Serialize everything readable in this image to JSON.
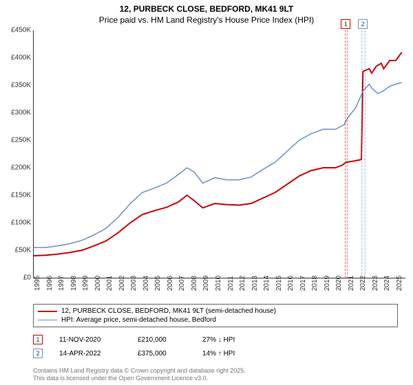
{
  "title_line1": "12, PURBECK CLOSE, BEDFORD, MK41 9LT",
  "title_line2": "Price paid vs. HM Land Registry's House Price Index (HPI)",
  "chart": {
    "type": "line",
    "background_color": "#ffffff",
    "axis_color": "#333333",
    "x_range": [
      1995,
      2025.8
    ],
    "y_range": [
      0,
      450000
    ],
    "y_ticks": [
      0,
      50000,
      100000,
      150000,
      200000,
      250000,
      300000,
      350000,
      400000,
      450000
    ],
    "y_tick_labels": [
      "£0",
      "£50K",
      "£100K",
      "£150K",
      "£200K",
      "£250K",
      "£300K",
      "£350K",
      "£400K",
      "£450K"
    ],
    "x_ticks": [
      1995,
      1996,
      1997,
      1998,
      1999,
      2000,
      2001,
      2002,
      2003,
      2004,
      2005,
      2006,
      2007,
      2008,
      2009,
      2010,
      2011,
      2012,
      2013,
      2014,
      2015,
      2016,
      2017,
      2018,
      2019,
      2020,
      2021,
      2022,
      2023,
      2024,
      2025
    ],
    "tick_fontsize": 10,
    "series": [
      {
        "name": "price_paid",
        "label": "12, PURBECK CLOSE, BEDFORD, MK41 9LT (semi-detached house)",
        "color": "#cc0000",
        "line_width": 2,
        "points": [
          [
            1995,
            40000
          ],
          [
            1996,
            41000
          ],
          [
            1997,
            43000
          ],
          [
            1998,
            46000
          ],
          [
            1999,
            50000
          ],
          [
            2000,
            58000
          ],
          [
            2001,
            67000
          ],
          [
            2002,
            82000
          ],
          [
            2003,
            100000
          ],
          [
            2004,
            115000
          ],
          [
            2005,
            122000
          ],
          [
            2006,
            128000
          ],
          [
            2007,
            138000
          ],
          [
            2007.7,
            150000
          ],
          [
            2008.3,
            140000
          ],
          [
            2009,
            127000
          ],
          [
            2010,
            135000
          ],
          [
            2011,
            133000
          ],
          [
            2012,
            132000
          ],
          [
            2013,
            135000
          ],
          [
            2014,
            145000
          ],
          [
            2015,
            155000
          ],
          [
            2016,
            170000
          ],
          [
            2017,
            185000
          ],
          [
            2018,
            195000
          ],
          [
            2019,
            200000
          ],
          [
            2020,
            200000
          ],
          [
            2020.6,
            205000
          ],
          [
            2020.86,
            210000
          ],
          [
            2021.5,
            212000
          ],
          [
            2022.15,
            215000
          ],
          [
            2022.28,
            375000
          ],
          [
            2022.8,
            380000
          ],
          [
            2023,
            372000
          ],
          [
            2023.4,
            385000
          ],
          [
            2023.8,
            390000
          ],
          [
            2024,
            380000
          ],
          [
            2024.5,
            395000
          ],
          [
            2025,
            395000
          ],
          [
            2025.5,
            410000
          ]
        ]
      },
      {
        "name": "hpi",
        "label": "HPI: Average price, semi-detached house, Bedford",
        "color": "#6a8fc7",
        "line_width": 1.5,
        "points": [
          [
            1995,
            55000
          ],
          [
            1996,
            55000
          ],
          [
            1997,
            58000
          ],
          [
            1998,
            62000
          ],
          [
            1999,
            68000
          ],
          [
            2000,
            78000
          ],
          [
            2001,
            90000
          ],
          [
            2002,
            110000
          ],
          [
            2003,
            135000
          ],
          [
            2004,
            155000
          ],
          [
            2005,
            163000
          ],
          [
            2006,
            172000
          ],
          [
            2007,
            188000
          ],
          [
            2007.7,
            200000
          ],
          [
            2008.3,
            192000
          ],
          [
            2009,
            172000
          ],
          [
            2010,
            182000
          ],
          [
            2011,
            178000
          ],
          [
            2012,
            178000
          ],
          [
            2013,
            183000
          ],
          [
            2014,
            197000
          ],
          [
            2015,
            210000
          ],
          [
            2016,
            230000
          ],
          [
            2017,
            250000
          ],
          [
            2018,
            262000
          ],
          [
            2019,
            270000
          ],
          [
            2020,
            270000
          ],
          [
            2020.7,
            278000
          ],
          [
            2021,
            290000
          ],
          [
            2021.7,
            310000
          ],
          [
            2022.3,
            340000
          ],
          [
            2022.8,
            352000
          ],
          [
            2023,
            345000
          ],
          [
            2023.5,
            335000
          ],
          [
            2024,
            340000
          ],
          [
            2024.5,
            348000
          ],
          [
            2025,
            352000
          ],
          [
            2025.5,
            355000
          ]
        ]
      }
    ],
    "markers": [
      {
        "id": "1",
        "x": 2020.86,
        "color": "#cc0000",
        "width_years": 0.12
      },
      {
        "id": "2",
        "x": 2022.28,
        "color": "#6a8fc7",
        "width_years": 0.25
      }
    ]
  },
  "legend": {
    "border_color": "#666666"
  },
  "events": [
    {
      "id": "1",
      "border_color": "#cc0000",
      "date": "11-NOV-2020",
      "price": "£210,000",
      "delta": "27% ↓ HPI"
    },
    {
      "id": "2",
      "border_color": "#6a8fc7",
      "date": "14-APR-2022",
      "price": "£375,000",
      "delta": "14% ↑ HPI"
    }
  ],
  "footer_line1": "Contains HM Land Registry data © Crown copyright and database right 2025.",
  "footer_line2": "This data is licensed under the Open Government Licence v3.0."
}
